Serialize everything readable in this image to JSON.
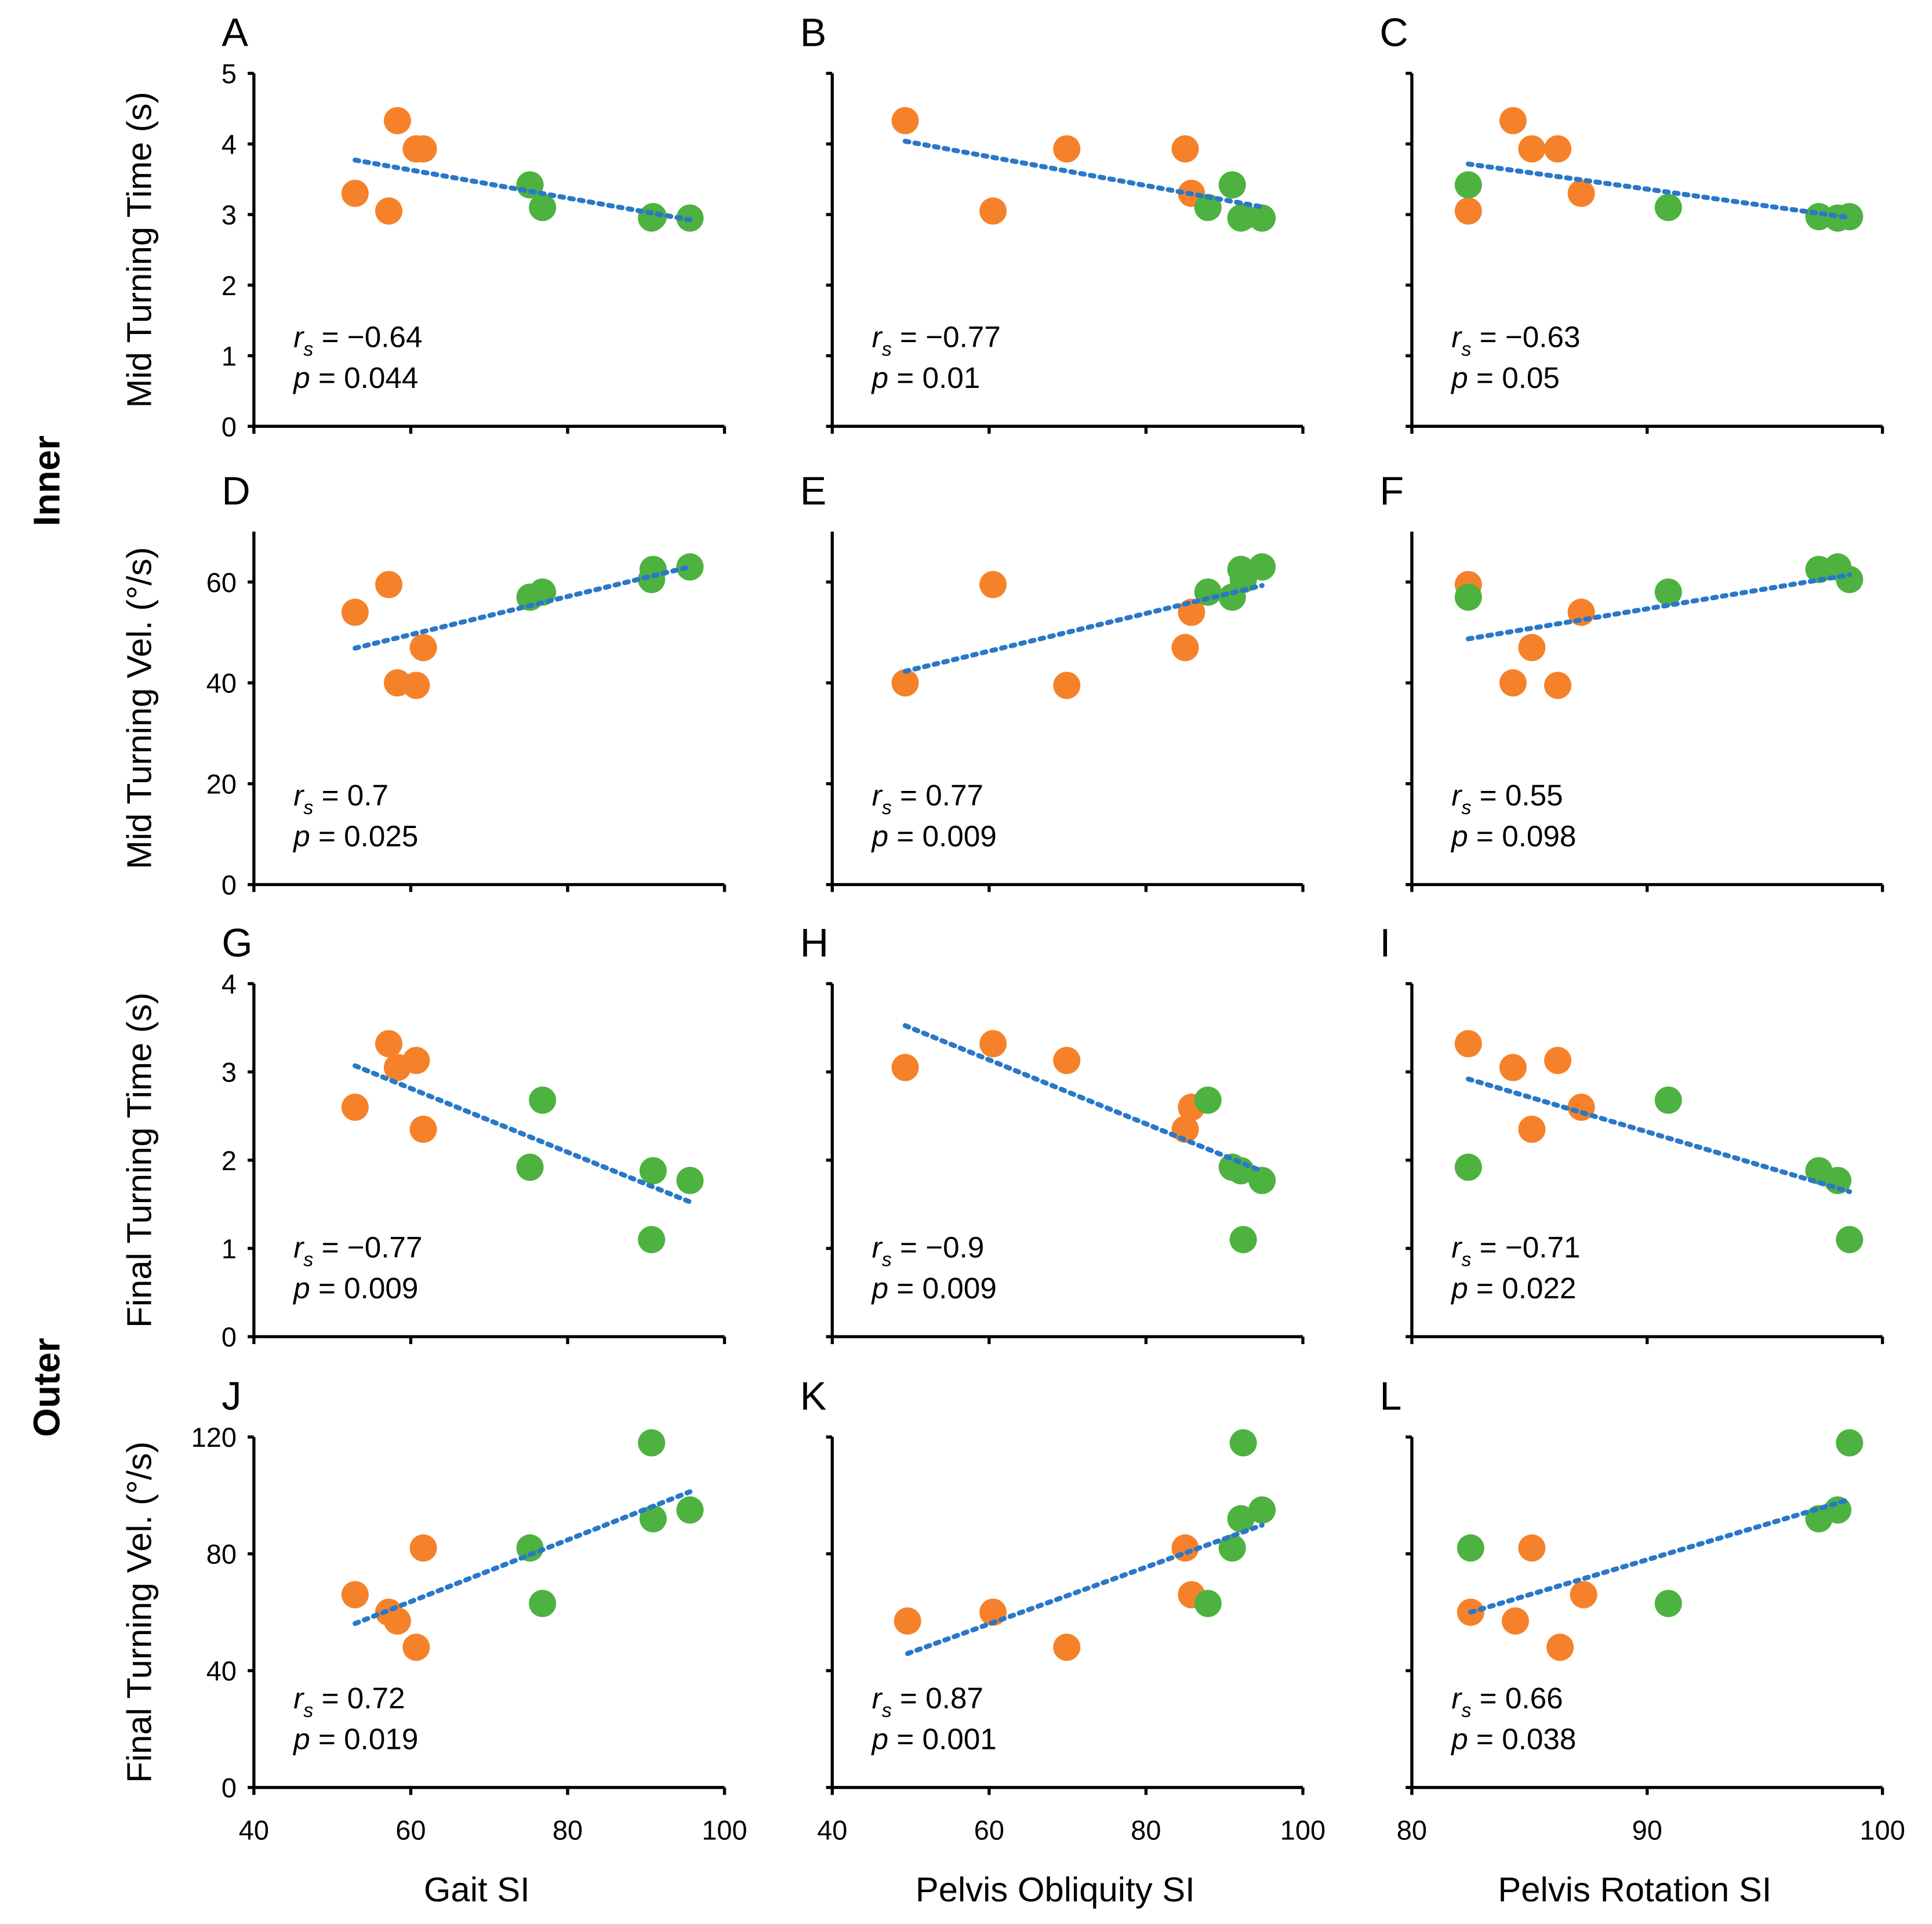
{
  "colors": {
    "orange": "#F5822A",
    "green": "#4DB23F",
    "trend": "#2A78C8",
    "axis": "#000000"
  },
  "row_groups": [
    "Inner",
    "Outer"
  ],
  "chart_data": {
    "type": "scatter",
    "grid": false,
    "columns": [
      {
        "xlabel": "Gait SI",
        "xlim": [
          40,
          100
        ],
        "xticks": [
          40,
          60,
          80,
          100
        ]
      },
      {
        "xlabel": "Pelvis Obliquity SI",
        "xlim": [
          40,
          100
        ],
        "xticks": [
          40,
          60,
          80,
          100
        ]
      },
      {
        "xlabel": "Pelvis Rotation SI",
        "xlim": [
          80,
          100
        ],
        "xticks": [
          80,
          90,
          100
        ]
      }
    ],
    "rows": [
      {
        "ylabel": "Mid Turning Time (s)",
        "ylim": [
          0,
          5
        ],
        "yticks": [
          0,
          1,
          2,
          3,
          4,
          5
        ]
      },
      {
        "ylabel": "Mid Turning Vel. (°/s)",
        "ylim": [
          0,
          70
        ],
        "yticks": [
          0,
          20,
          40,
          60
        ],
        "minor_ticks": [
          0,
          20,
          40,
          60
        ]
      },
      {
        "ylabel": "Final Turning Time (s)",
        "ylim": [
          0,
          4
        ],
        "yticks": [
          0,
          1,
          2,
          3,
          4
        ]
      },
      {
        "ylabel": "Final Turning Vel. (°/s)",
        "ylim": [
          0,
          120
        ],
        "yticks": [
          0,
          40,
          80,
          120
        ]
      }
    ],
    "panels": [
      {
        "letter": "A",
        "rs": "−0.64",
        "p": "0.044",
        "orange": [
          [
            52.9,
            3.3
          ],
          [
            57.2,
            3.05
          ],
          [
            58.3,
            4.33
          ],
          [
            60.7,
            3.93
          ],
          [
            61.6,
            3.93
          ]
        ],
        "green": [
          [
            75.2,
            3.42
          ],
          [
            76.8,
            3.1
          ],
          [
            90.7,
            2.95
          ],
          [
            90.9,
            2.97
          ],
          [
            95.6,
            2.95
          ]
        ]
      },
      {
        "letter": "B",
        "rs": "−0.77",
        "p": "0.01",
        "orange": [
          [
            49.3,
            4.33
          ],
          [
            60.5,
            3.05
          ],
          [
            69.9,
            3.93
          ],
          [
            85.0,
            3.93
          ],
          [
            85.8,
            3.3
          ]
        ],
        "green": [
          [
            87.9,
            3.1
          ],
          [
            91.0,
            3.42
          ],
          [
            92.1,
            2.95
          ],
          [
            92.4,
            2.97
          ],
          [
            94.8,
            2.95
          ]
        ]
      },
      {
        "letter": "C",
        "rs": "−0.63",
        "p": "0.05",
        "orange": [
          [
            82.4,
            3.05
          ],
          [
            84.3,
            4.33
          ],
          [
            85.1,
            3.93
          ],
          [
            86.2,
            3.93
          ],
          [
            87.2,
            3.3
          ]
        ],
        "green": [
          [
            82.4,
            3.42
          ],
          [
            90.9,
            3.1
          ],
          [
            97.3,
            2.97
          ],
          [
            98.1,
            2.95
          ],
          [
            98.6,
            2.97
          ]
        ]
      },
      {
        "letter": "D",
        "rs": "0.7",
        "p": "0.025",
        "orange": [
          [
            52.9,
            54
          ],
          [
            57.2,
            59.5
          ],
          [
            58.3,
            40
          ],
          [
            60.7,
            39.5
          ],
          [
            61.6,
            47
          ]
        ],
        "green": [
          [
            75.2,
            57
          ],
          [
            76.8,
            58
          ],
          [
            90.7,
            60.5
          ],
          [
            90.9,
            62.5
          ],
          [
            95.6,
            63
          ]
        ]
      },
      {
        "letter": "E",
        "rs": "0.77",
        "p": "0.009",
        "orange": [
          [
            49.3,
            40
          ],
          [
            60.5,
            59.5
          ],
          [
            69.9,
            39.5
          ],
          [
            85.0,
            47
          ],
          [
            85.8,
            54
          ]
        ],
        "green": [
          [
            87.9,
            58
          ],
          [
            91.0,
            57
          ],
          [
            92.1,
            62.5
          ],
          [
            92.4,
            60.5
          ],
          [
            94.8,
            63
          ]
        ]
      },
      {
        "letter": "F",
        "rs": "0.55",
        "p": "0.098",
        "orange": [
          [
            82.4,
            59.5
          ],
          [
            84.3,
            40
          ],
          [
            85.1,
            47
          ],
          [
            86.2,
            39.5
          ],
          [
            87.2,
            54
          ]
        ],
        "green": [
          [
            82.4,
            57
          ],
          [
            90.9,
            58
          ],
          [
            97.3,
            62.5
          ],
          [
            98.1,
            63
          ],
          [
            98.6,
            60.5
          ]
        ]
      },
      {
        "letter": "G",
        "rs": "−0.77",
        "p": "0.009",
        "orange": [
          [
            52.9,
            2.6
          ],
          [
            57.2,
            3.32
          ],
          [
            58.3,
            3.05
          ],
          [
            60.7,
            3.13
          ],
          [
            61.6,
            2.35
          ]
        ],
        "green": [
          [
            75.2,
            1.92
          ],
          [
            76.8,
            2.68
          ],
          [
            90.7,
            1.1
          ],
          [
            90.9,
            1.88
          ],
          [
            95.6,
            1.77
          ]
        ]
      },
      {
        "letter": "H",
        "rs": "−0.9",
        "p": "0.009",
        "orange": [
          [
            49.3,
            3.05
          ],
          [
            60.5,
            3.32
          ],
          [
            69.9,
            3.13
          ],
          [
            85.0,
            2.35
          ],
          [
            85.8,
            2.6
          ]
        ],
        "green": [
          [
            87.9,
            2.68
          ],
          [
            91.0,
            1.92
          ],
          [
            92.1,
            1.88
          ],
          [
            92.4,
            1.1
          ],
          [
            94.8,
            1.77
          ]
        ]
      },
      {
        "letter": "I",
        "rs": "−0.71",
        "p": "0.022",
        "orange": [
          [
            82.4,
            3.32
          ],
          [
            84.3,
            3.05
          ],
          [
            85.1,
            2.35
          ],
          [
            86.2,
            3.13
          ],
          [
            87.2,
            2.6
          ]
        ],
        "green": [
          [
            82.4,
            1.92
          ],
          [
            90.9,
            2.68
          ],
          [
            97.3,
            1.88
          ],
          [
            98.1,
            1.77
          ],
          [
            98.6,
            1.1
          ]
        ]
      },
      {
        "letter": "J",
        "rs": "0.72",
        "p": "0.019",
        "orange": [
          [
            52.9,
            66
          ],
          [
            57.2,
            60
          ],
          [
            58.3,
            57
          ],
          [
            60.7,
            48
          ],
          [
            61.6,
            82
          ]
        ],
        "green": [
          [
            75.2,
            82
          ],
          [
            76.8,
            63
          ],
          [
            90.7,
            118
          ],
          [
            90.9,
            92
          ],
          [
            95.6,
            95
          ]
        ]
      },
      {
        "letter": "K",
        "rs": "0.87",
        "p": "0.001",
        "orange": [
          [
            49.6,
            57
          ],
          [
            60.5,
            60
          ],
          [
            69.9,
            48
          ],
          [
            85.0,
            82
          ],
          [
            85.8,
            66
          ]
        ],
        "green": [
          [
            87.9,
            63
          ],
          [
            91.0,
            82
          ],
          [
            92.1,
            92
          ],
          [
            92.4,
            118
          ],
          [
            94.8,
            95
          ]
        ]
      },
      {
        "letter": "L",
        "rs": "0.66",
        "p": "0.038",
        "orange": [
          [
            82.5,
            60
          ],
          [
            84.4,
            57
          ],
          [
            85.1,
            82
          ],
          [
            86.3,
            48
          ],
          [
            87.3,
            66
          ]
        ],
        "green": [
          [
            82.5,
            82
          ],
          [
            90.9,
            63
          ],
          [
            97.3,
            92
          ],
          [
            98.1,
            95
          ],
          [
            98.6,
            118
          ]
        ]
      }
    ],
    "stat_labels": {
      "r": "r",
      "sub": "s",
      "p": "p",
      "eq": " = "
    }
  }
}
